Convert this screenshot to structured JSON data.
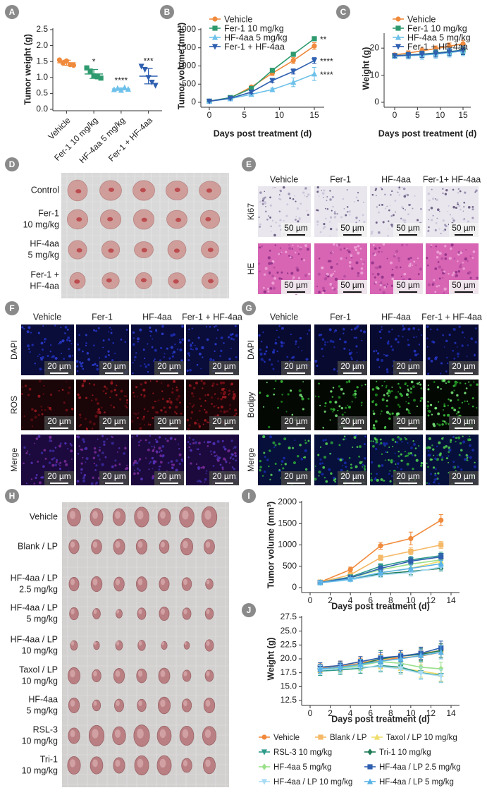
{
  "chart_data": [
    {
      "type": "dot",
      "ylabel": "Tumor weight (g)",
      "categories": [
        "Vehicle",
        "Fer-1 10 mg/kg",
        "HF-4aa 5 mg/kg",
        "Fer-1 + HF-4aa"
      ],
      "points": [
        [
          1.55,
          1.45,
          1.52,
          1.4,
          1.38
        ],
        [
          1.3,
          1.2,
          1.05,
          1.02,
          0.98
        ],
        [
          0.62,
          0.66,
          0.6,
          0.68,
          0.63
        ],
        [
          1.35,
          1.25,
          1.0,
          0.85,
          0.75
        ]
      ],
      "means": [
        1.46,
        1.11,
        0.64,
        1.04
      ],
      "errors": [
        0.08,
        0.14,
        0.03,
        0.24
      ],
      "colors": [
        "#f08a3c",
        "#2e9a6e",
        "#6ec1ea",
        "#2f5fb0"
      ],
      "markers": [
        "circle",
        "square",
        "triangle",
        "triangle-down"
      ],
      "annotations": [
        null,
        "*",
        "****",
        "***"
      ],
      "ylim": [
        0,
        2.5
      ],
      "yticks": [
        {
          "value": 0,
          "label": "0.0"
        },
        0.5,
        {
          "value": 1,
          "label": "1.0"
        },
        1.5,
        {
          "value": 2,
          "label": "2.0"
        },
        2.5
      ]
    },
    {
      "type": "line",
      "ylabel": "Tumor volume (mm³)",
      "xlabel": "Days post treatment (d)",
      "legend": "upper left",
      "x": [
        0,
        3,
        6,
        9,
        12,
        15
      ],
      "xlim": [
        0,
        15
      ],
      "xticks": [
        0,
        5,
        10,
        15
      ],
      "ylim": [
        0,
        2000
      ],
      "yticks": [
        0,
        500,
        1000,
        1500,
        2000
      ],
      "series": [
        {
          "name": "Vehicle",
          "color": "#f08a3c",
          "marker": "circle",
          "values": [
            30,
            120,
            420,
            800,
            1150,
            1550
          ],
          "errors": [
            15,
            25,
            40,
            60,
            80,
            90
          ]
        },
        {
          "name": "Fer-1 10 mg/kg",
          "color": "#2e9a6e",
          "marker": "square",
          "values": [
            30,
            130,
            380,
            880,
            1320,
            1750
          ],
          "errors": [
            15,
            20,
            30,
            40,
            50,
            50
          ],
          "annotation": "**"
        },
        {
          "name": "HF-4aa 5 mg/kg",
          "color": "#6ec1ea",
          "marker": "triangle",
          "values": [
            30,
            100,
            220,
            350,
            550,
            780
          ],
          "errors": [
            10,
            20,
            30,
            40,
            120,
            180
          ],
          "annotation": "****"
        },
        {
          "name": "Fer-1 + HF-4aa",
          "color": "#2f5fb0",
          "marker": "triangle-down",
          "values": [
            30,
            110,
            280,
            600,
            850,
            1150
          ],
          "errors": [
            10,
            20,
            40,
            60,
            70,
            80
          ],
          "annotation": "****"
        }
      ]
    },
    {
      "type": "line",
      "ylabel": "Weight (g)",
      "xlabel": "Days post treatment (d)",
      "legend": "upper left",
      "x": [
        0,
        3,
        6,
        9,
        12,
        15
      ],
      "xlim": [
        0,
        15
      ],
      "xticks": [
        0,
        5,
        10,
        15
      ],
      "ylim": [
        0,
        25
      ],
      "yticks": [
        0,
        10,
        20
      ],
      "series": [
        {
          "name": "Vehicle",
          "color": "#f08a3c",
          "marker": "circle",
          "values": [
            17.5,
            18.2,
            19,
            19.8,
            20.7,
            21.6
          ],
          "errors": [
            0.5,
            0.8,
            1,
            1,
            1.2,
            1.3
          ]
        },
        {
          "name": "Fer-1 10 mg/kg",
          "color": "#2e9a6e",
          "marker": "square",
          "values": [
            17.2,
            17.5,
            17.8,
            18.2,
            18.7,
            19.3
          ],
          "errors": [
            0.6,
            0.8,
            1,
            1.2,
            1.3,
            1.4
          ]
        },
        {
          "name": "HF-4aa 5 mg/kg",
          "color": "#6ec1ea",
          "marker": "triangle",
          "values": [
            17,
            17.2,
            17.4,
            17.8,
            18.3,
            19
          ],
          "errors": [
            0.8,
            1.2,
            1.5,
            1.5,
            1.6,
            1.8
          ]
        },
        {
          "name": "Fer-1 + HF-4aa",
          "color": "#2f5fb0",
          "marker": "triangle-down",
          "values": [
            17.2,
            17.4,
            17.7,
            18,
            18.6,
            19.2
          ],
          "errors": [
            0.7,
            1,
            1.2,
            1.3,
            1.4,
            1.6
          ]
        }
      ]
    },
    {
      "type": "line",
      "ylabel": "Tumor volume (mm³)",
      "xlabel": "Days post treatment (d)",
      "x": [
        1,
        4,
        7,
        10,
        13
      ],
      "xlim": [
        0,
        14
      ],
      "xticks": [
        0,
        2,
        4,
        6,
        8,
        10,
        12,
        14
      ],
      "ylim": [
        0,
        2000
      ],
      "yticks": [
        0,
        500,
        1000,
        1500,
        2000
      ],
      "series": [
        {
          "color": "#f08a3c",
          "marker": "circle",
          "values": [
            130,
            420,
            980,
            1150,
            1580
          ],
          "errors": [
            30,
            60,
            80,
            150,
            130
          ]
        },
        {
          "color": "#f5b967",
          "marker": "square",
          "values": [
            130,
            300,
            700,
            850,
            1000
          ],
          "errors": [
            20,
            40,
            60,
            80,
            80
          ]
        },
        {
          "color": "#f0dc6a",
          "marker": "triangle",
          "values": [
            120,
            200,
            350,
            450,
            620
          ],
          "errors": [
            20,
            40,
            60,
            80,
            80
          ]
        },
        {
          "color": "#2e9a8a",
          "marker": "triangle-down",
          "values": [
            120,
            250,
            500,
            650,
            750
          ],
          "errors": [
            20,
            40,
            60,
            80,
            80
          ]
        },
        {
          "color": "#1e7a55",
          "marker": "diamond",
          "values": [
            120,
            200,
            320,
            380,
            450
          ],
          "errors": [
            20,
            40,
            60,
            80,
            60
          ]
        },
        {
          "color": "#9be08a",
          "marker": "diamond",
          "values": [
            120,
            230,
            420,
            550,
            650
          ],
          "errors": [
            20,
            40,
            60,
            80,
            80
          ]
        },
        {
          "color": "#2f5fb0",
          "marker": "square",
          "values": [
            120,
            230,
            450,
            620,
            720
          ],
          "errors": [
            20,
            40,
            60,
            80,
            80
          ]
        },
        {
          "color": "#a8dcf5",
          "marker": "triangle-down",
          "values": [
            110,
            180,
            300,
            350,
            480
          ],
          "errors": [
            20,
            40,
            60,
            80,
            80
          ]
        },
        {
          "color": "#5ab3e6",
          "marker": "triangle",
          "values": [
            115,
            200,
            350,
            450,
            560
          ],
          "errors": [
            20,
            40,
            60,
            80,
            80
          ]
        }
      ]
    },
    {
      "type": "line",
      "ylabel": "Weight (g)",
      "xlabel": "Days post treatment (d)",
      "legend": "below",
      "x": [
        1,
        3,
        5,
        7,
        9,
        11,
        13
      ],
      "xlim": [
        0,
        14
      ],
      "xticks": [
        0,
        2,
        4,
        6,
        8,
        10,
        12,
        14
      ],
      "ylim": [
        12.5,
        27.5
      ],
      "yticks": [
        12.5,
        {
          "value": 15,
          "label": "15.0"
        },
        17.5,
        {
          "value": 20,
          "label": "20.0"
        },
        22.5,
        {
          "value": 25,
          "label": "25.0"
        },
        27.5
      ],
      "series": [
        {
          "name": "Vehicle",
          "color": "#f08a3c",
          "marker": "circle",
          "values": [
            18.3,
            18.6,
            19.2,
            19.8,
            20.2,
            20.5,
            21.2
          ],
          "errors": [
            0.8,
            0.8,
            0.9,
            1,
            1,
            1.1,
            1.2
          ]
        },
        {
          "name": "Blank / LP",
          "color": "#f5b967",
          "marker": "square",
          "values": [
            18.5,
            18.8,
            19.5,
            19.8,
            20.5,
            21,
            21.5
          ],
          "errors": [
            0.8,
            0.8,
            0.9,
            1,
            1,
            1.1,
            1.2
          ]
        },
        {
          "name": "Taxol / LP 10 mg/kg",
          "color": "#f0dc6a",
          "marker": "triangle",
          "values": [
            18,
            18.2,
            18.5,
            18.6,
            18.3,
            17.8,
            17.2
          ],
          "errors": [
            0.8,
            0.8,
            0.9,
            1,
            1,
            1.1,
            1.2
          ]
        },
        {
          "name": "RSL-3 10 mg/kg",
          "color": "#2e9a8a",
          "marker": "triangle-down",
          "values": [
            17.8,
            18,
            18.3,
            18.8,
            18.5,
            17.5,
            17
          ],
          "errors": [
            0.8,
            0.8,
            0.9,
            1,
            1,
            1.1,
            1.2
          ]
        },
        {
          "name": "Tri-1 10 mg/kg",
          "color": "#1e7a55",
          "marker": "diamond",
          "values": [
            18.2,
            18.5,
            19,
            20,
            20.5,
            20.8,
            21.5
          ],
          "errors": [
            0.8,
            0.8,
            0.9,
            1.5,
            1,
            1.1,
            1.2
          ]
        },
        {
          "name": "HF-4aa 5 mg/kg",
          "color": "#9be08a",
          "marker": "diamond",
          "values": [
            18,
            18.3,
            18.8,
            19.5,
            19.2,
            18.5,
            18.2
          ],
          "errors": [
            0.8,
            0.8,
            0.9,
            1,
            1,
            1.1,
            1.2
          ]
        },
        {
          "name": "HF-4aa / LP 2.5 mg/kg",
          "color": "#2f5fb0",
          "marker": "square",
          "values": [
            18.5,
            18.8,
            19.5,
            20.2,
            20.5,
            21,
            22
          ],
          "errors": [
            0.8,
            0.8,
            0.9,
            1,
            1,
            1.1,
            1.2
          ]
        },
        {
          "name": "HF-4aa / LP 10 mg/kg",
          "color": "#a8dcf5",
          "marker": "triangle-down",
          "values": [
            18,
            18.2,
            18.5,
            18.6,
            18.2,
            17.4,
            16.9
          ],
          "errors": [
            0.8,
            0.8,
            0.9,
            1,
            1,
            1.1,
            1.2
          ]
        },
        {
          "name": "HF-4aa / LP 5 mg/kg",
          "color": "#5ab3e6",
          "marker": "triangle",
          "values": [
            18.2,
            18.5,
            19,
            19.6,
            20,
            20.6,
            21.2
          ],
          "errors": [
            0.8,
            0.8,
            0.9,
            1,
            1,
            1.1,
            1.2
          ]
        }
      ]
    }
  ],
  "panel_letters": [
    "A",
    "B",
    "C",
    "D",
    "E",
    "F",
    "G",
    "H",
    "I",
    "J"
  ],
  "tumor_photo_d": {
    "rows": [
      [
        "Control"
      ],
      [
        "Fer-1",
        "10 mg/kg"
      ],
      [
        "HF-4aa",
        "5 mg/kg"
      ],
      [
        "Fer-1 +",
        "HF-4aa"
      ]
    ]
  },
  "staining_e": {
    "columns": [
      "Vehicle",
      "Fer-1",
      "HF-4aa",
      "Fer-1+ HF-4aa"
    ],
    "rows": [
      "Ki67",
      "HE"
    ],
    "scale_bar": "50 µm"
  },
  "fluorescence_f": {
    "columns": [
      "Vehicle",
      "Fer-1",
      "HF-4aa",
      "Fer-1 + HF-4aa"
    ],
    "rows": [
      "DAPI",
      "ROS",
      "Merge"
    ],
    "scale_bar": "20 µm"
  },
  "fluorescence_g": {
    "columns": [
      "Vehicle",
      "Fer-1",
      "HF-4aa",
      "Fer-1 + HF-4aa"
    ],
    "rows": [
      "DAPI",
      "Bodipy",
      "Merge"
    ],
    "scale_bar": "20 µm"
  },
  "tumor_photo_h": {
    "rows": [
      [
        "Vehicle"
      ],
      [
        "Blank / LP"
      ],
      [
        "HF-4aa / LP",
        "2.5 mg/kg"
      ],
      [
        "HF-4aa / LP",
        "5 mg/kg"
      ],
      [
        "HF-4aa / LP",
        "10 mg/kg"
      ],
      [
        "Taxol / LP",
        "10 mg/kg"
      ],
      [
        "HF-4aa",
        "5 mg/kg"
      ],
      [
        "RSL-3",
        "10 mg/kg"
      ],
      [
        "Tri-1",
        "10 mg/kg"
      ]
    ]
  }
}
